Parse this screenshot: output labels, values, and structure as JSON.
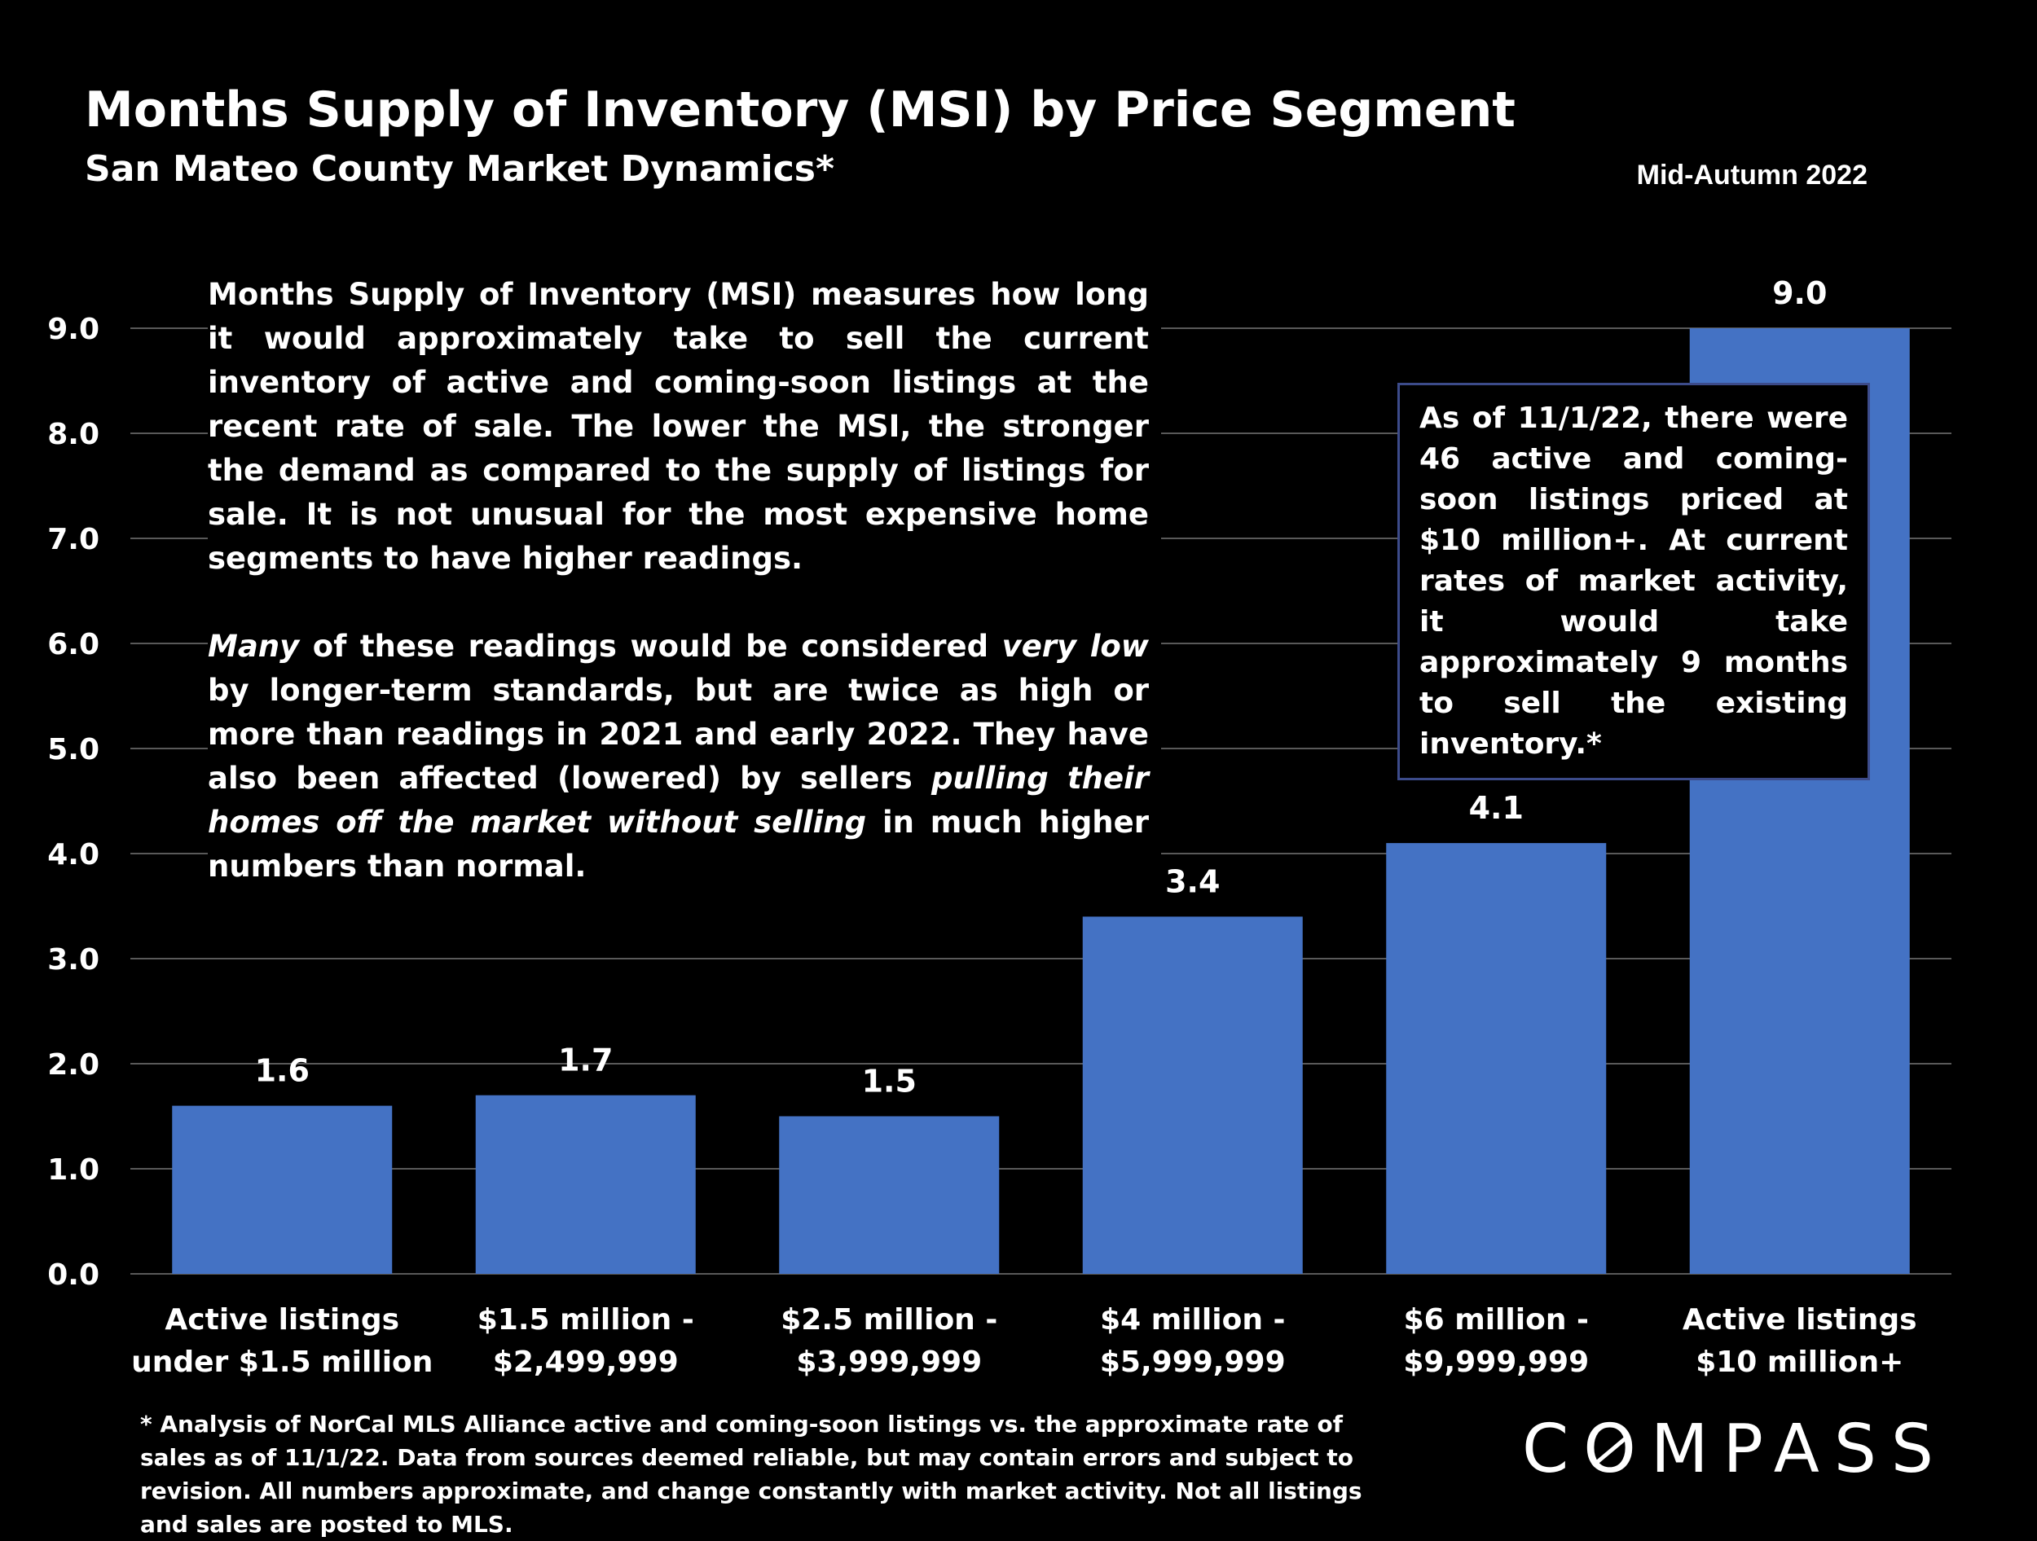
{
  "header": {
    "title": "Months Supply of Inventory (MSI) by Price Segment",
    "subtitle": "San Mateo County Market Dynamics*",
    "period": "Mid-Autumn 2022"
  },
  "intro": {
    "p1": "Months Supply of Inventory (MSI) measures how long it would approximately take to sell the current inventory of active and coming-soon listings at the recent rate of sale. The lower the MSI, the stronger the demand as compared to the supply of listings for sale. It is not unusual for the most expensive home segments to have higher readings.",
    "p2_a": "Many",
    "p2_b": " of these readings would be considered ",
    "p2_c": "very low",
    "p2_d": " by longer-term standards, but are twice as high or more than readings in 2021 and early 2022. They have also been affected (lowered) by sellers ",
    "p2_e": "pulling their homes off the market without selling",
    "p2_f": " in much higher numbers than normal."
  },
  "callout": {
    "text": "As of 11/1/22, there were 46 active and coming-soon listings priced at $10 million+. At current rates of market activity, it would take approximately 9 months to sell the existing inventory.*"
  },
  "footnote": {
    "text": "* Analysis of NorCal MLS Alliance active and coming-soon listings vs. the approximate rate of sales as of 11/1/22. Data from sources deemed reliable, but may contain errors and subject to revision. All numbers approximate, and change constantly with market activity. Not all listings and sales are posted to MLS."
  },
  "logo": {
    "text_before": "C",
    "text_o": "O",
    "text_after": "MPASS"
  },
  "colors": {
    "bar": "#4472C4",
    "grid": "#595959",
    "background": "#000000"
  },
  "chart_data": {
    "type": "bar",
    "title": "Months Supply of Inventory (MSI) by Price Segment",
    "categories": [
      [
        "Active listings",
        "under $1.5 million"
      ],
      [
        "$1.5 million -",
        "$2,499,999"
      ],
      [
        "$2.5 million -",
        "$3,999,999"
      ],
      [
        "$4 million -",
        "$5,999,999"
      ],
      [
        "$6 million -",
        "$9,999,999"
      ],
      [
        "Active listings",
        "$10 million+"
      ]
    ],
    "values": [
      1.6,
      1.7,
      1.5,
      3.4,
      4.1,
      9.0
    ],
    "value_labels": [
      "1.6",
      "1.7",
      "1.5",
      "3.4",
      "4.1",
      "9.0"
    ],
    "ylim": [
      0,
      9
    ],
    "yticks": [
      "0.0",
      "1.0",
      "2.0",
      "3.0",
      "4.0",
      "5.0",
      "6.0",
      "7.0",
      "8.0",
      "9.0"
    ],
    "grid": true,
    "legend": "none"
  }
}
